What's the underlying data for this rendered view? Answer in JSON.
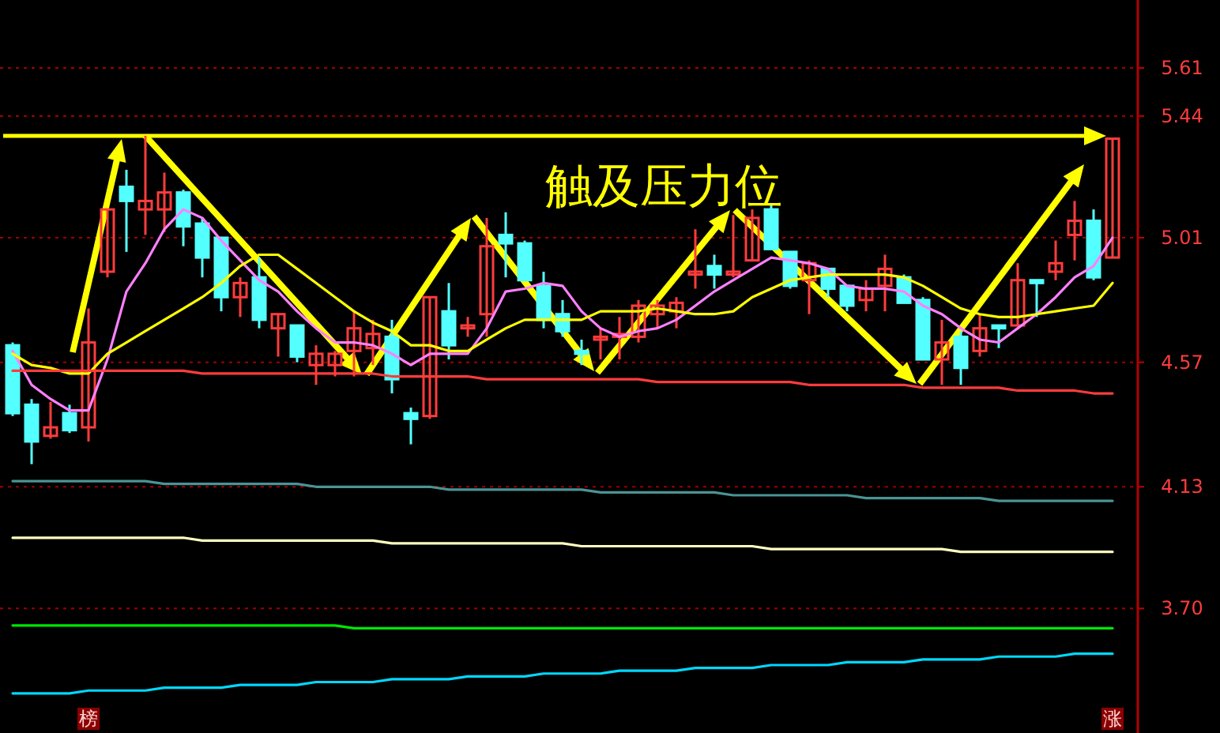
{
  "chart_data": {
    "type": "candlestick",
    "categories": [
      null,
      null,
      null,
      null,
      "榜",
      null,
      null,
      null,
      null,
      null,
      null,
      null,
      null,
      null,
      null,
      null,
      null,
      null,
      null,
      null,
      null,
      null,
      null,
      null,
      null,
      null,
      null,
      null,
      null,
      null,
      null,
      null,
      null,
      null,
      null,
      null,
      null,
      null,
      null,
      null,
      null,
      null,
      null,
      null,
      null,
      null,
      null,
      null,
      null,
      null,
      null,
      null,
      null,
      null,
      null,
      null,
      null,
      null,
      "涨"
    ],
    "ohlc": [
      [
        4.63,
        4.64,
        4.38,
        4.39
      ],
      [
        4.42,
        4.44,
        4.21,
        4.29
      ],
      [
        4.31,
        4.43,
        4.3,
        4.34
      ],
      [
        4.39,
        4.42,
        4.32,
        4.33
      ],
      [
        4.34,
        4.76,
        4.29,
        4.64
      ],
      [
        4.89,
        5.11,
        4.87,
        5.11
      ],
      [
        5.19,
        5.25,
        4.96,
        5.14
      ],
      [
        5.11,
        5.37,
        5.02,
        5.14
      ],
      [
        5.11,
        5.24,
        5.03,
        5.17
      ],
      [
        5.17,
        5.18,
        4.98,
        5.05
      ],
      [
        5.06,
        5.08,
        4.87,
        4.94
      ],
      [
        5.01,
        5.01,
        4.75,
        4.8
      ],
      [
        4.8,
        4.87,
        4.73,
        4.85
      ],
      [
        4.87,
        4.94,
        4.69,
        4.72
      ],
      [
        4.69,
        4.74,
        4.59,
        4.74
      ],
      [
        4.7,
        4.7,
        4.57,
        4.59
      ],
      [
        4.56,
        4.63,
        4.49,
        4.6
      ],
      [
        4.56,
        4.61,
        4.52,
        4.6
      ],
      [
        4.61,
        4.75,
        4.52,
        4.69
      ],
      [
        4.62,
        4.72,
        4.56,
        4.67
      ],
      [
        4.66,
        4.72,
        4.46,
        4.51
      ],
      [
        4.39,
        4.41,
        4.28,
        4.37
      ],
      [
        4.38,
        4.8,
        4.37,
        4.8
      ],
      [
        4.75,
        4.85,
        4.58,
        4.63
      ],
      [
        4.69,
        4.73,
        4.66,
        4.7
      ],
      [
        4.74,
        5.08,
        4.66,
        4.98
      ],
      [
        5.02,
        5.1,
        4.87,
        4.99
      ],
      [
        4.99,
        5.0,
        4.86,
        4.86
      ],
      [
        4.84,
        4.89,
        4.69,
        4.72
      ],
      [
        4.74,
        4.79,
        4.66,
        4.68
      ],
      [
        4.61,
        4.65,
        4.56,
        4.6
      ],
      [
        4.65,
        4.69,
        4.58,
        4.66
      ],
      [
        4.66,
        4.73,
        4.58,
        4.67
      ],
      [
        4.66,
        4.79,
        4.64,
        4.77
      ],
      [
        4.74,
        4.79,
        4.69,
        4.77
      ],
      [
        4.75,
        4.8,
        4.69,
        4.78
      ],
      [
        4.88,
        5.04,
        4.83,
        4.89
      ],
      [
        4.91,
        4.95,
        4.83,
        4.88
      ],
      [
        4.88,
        5.09,
        4.87,
        4.89
      ],
      [
        4.93,
        5.11,
        4.93,
        5.08
      ],
      [
        5.11,
        5.13,
        4.97,
        4.97
      ],
      [
        4.96,
        4.96,
        4.83,
        4.84
      ],
      [
        4.86,
        4.93,
        4.74,
        4.92
      ],
      [
        4.9,
        4.9,
        4.8,
        4.83
      ],
      [
        4.84,
        4.84,
        4.75,
        4.77
      ],
      [
        4.79,
        4.86,
        4.75,
        4.83
      ],
      [
        4.84,
        4.95,
        4.75,
        4.9
      ],
      [
        4.87,
        4.88,
        4.78,
        4.78
      ],
      [
        4.79,
        4.8,
        4.58,
        4.58
      ],
      [
        4.58,
        4.72,
        4.49,
        4.64
      ],
      [
        4.66,
        4.68,
        4.49,
        4.55
      ],
      [
        4.61,
        4.74,
        4.59,
        4.69
      ],
      [
        4.7,
        4.7,
        4.62,
        4.69
      ],
      [
        4.7,
        4.92,
        4.7,
        4.86
      ],
      [
        4.86,
        4.86,
        4.73,
        4.85
      ],
      [
        4.89,
        5.0,
        4.86,
        4.92
      ],
      [
        5.02,
        5.14,
        4.93,
        5.07
      ],
      [
        5.07,
        5.11,
        4.86,
        4.87
      ],
      [
        4.94,
        5.36,
        4.94,
        5.36
      ]
    ],
    "series": [
      {
        "type": "line",
        "color": "#ff80ff",
        "values": [
          4.61,
          4.49,
          4.44,
          4.4,
          4.4,
          4.58,
          4.82,
          4.92,
          5.04,
          5.11,
          5.08,
          5.0,
          4.93,
          4.86,
          4.82,
          4.75,
          4.69,
          4.64,
          4.64,
          4.63,
          4.6,
          4.56,
          4.6,
          4.6,
          4.6,
          4.69,
          4.82,
          4.83,
          4.85,
          4.84,
          4.75,
          4.69,
          4.66,
          4.68,
          4.69,
          4.72,
          4.77,
          4.82,
          4.86,
          4.9,
          4.94,
          4.93,
          4.92,
          4.9,
          4.84,
          4.83,
          4.83,
          4.82,
          4.77,
          4.74,
          4.69,
          4.65,
          4.64,
          4.69,
          4.74,
          4.8,
          4.87,
          4.91,
          5.01
        ]
      },
      {
        "type": "line",
        "color": "#ffff00",
        "values": [
          4.6,
          4.56,
          4.55,
          4.53,
          4.53,
          4.6,
          4.64,
          4.68,
          4.72,
          4.76,
          4.8,
          4.85,
          4.91,
          4.95,
          4.95,
          4.9,
          4.85,
          4.8,
          4.75,
          4.71,
          4.68,
          4.63,
          4.63,
          4.61,
          4.61,
          4.65,
          4.69,
          4.72,
          4.72,
          4.72,
          4.72,
          4.75,
          4.75,
          4.75,
          4.76,
          4.75,
          4.74,
          4.74,
          4.75,
          4.8,
          4.83,
          4.86,
          4.87,
          4.88,
          4.88,
          4.88,
          4.88,
          4.87,
          4.84,
          4.8,
          4.76,
          4.74,
          4.73,
          4.73,
          4.74,
          4.75,
          4.76,
          4.77,
          4.85
        ]
      },
      {
        "type": "line",
        "color": "#ff3c3c",
        "values": [
          4.54,
          4.54,
          4.54,
          4.54,
          4.54,
          4.54,
          4.54,
          4.54,
          4.54,
          4.54,
          4.53,
          4.53,
          4.53,
          4.53,
          4.53,
          4.53,
          4.53,
          4.53,
          4.53,
          4.53,
          4.52,
          4.52,
          4.52,
          4.52,
          4.52,
          4.51,
          4.51,
          4.51,
          4.51,
          4.51,
          4.51,
          4.51,
          4.51,
          4.51,
          4.5,
          4.5,
          4.5,
          4.5,
          4.5,
          4.5,
          4.5,
          4.5,
          4.49,
          4.49,
          4.49,
          4.49,
          4.49,
          4.49,
          4.48,
          4.48,
          4.48,
          4.48,
          4.48,
          4.47,
          4.47,
          4.47,
          4.47,
          4.46,
          4.46
        ]
      },
      {
        "type": "line",
        "color": "#4a9494",
        "values": [
          4.15,
          4.15,
          4.15,
          4.15,
          4.15,
          4.15,
          4.15,
          4.15,
          4.14,
          4.14,
          4.14,
          4.14,
          4.14,
          4.14,
          4.14,
          4.14,
          4.13,
          4.13,
          4.13,
          4.13,
          4.13,
          4.13,
          4.13,
          4.12,
          4.12,
          4.12,
          4.12,
          4.12,
          4.12,
          4.12,
          4.12,
          4.11,
          4.11,
          4.11,
          4.11,
          4.11,
          4.11,
          4.11,
          4.1,
          4.1,
          4.1,
          4.1,
          4.1,
          4.1,
          4.1,
          4.09,
          4.09,
          4.09,
          4.09,
          4.09,
          4.09,
          4.09,
          4.08,
          4.08,
          4.08,
          4.08,
          4.08,
          4.08,
          4.08
        ]
      },
      {
        "type": "line",
        "color": "#ffffc0",
        "values": [
          3.95,
          3.95,
          3.95,
          3.95,
          3.95,
          3.95,
          3.95,
          3.95,
          3.95,
          3.95,
          3.94,
          3.94,
          3.94,
          3.94,
          3.94,
          3.94,
          3.94,
          3.94,
          3.94,
          3.94,
          3.93,
          3.93,
          3.93,
          3.93,
          3.93,
          3.93,
          3.93,
          3.93,
          3.93,
          3.93,
          3.92,
          3.92,
          3.92,
          3.92,
          3.92,
          3.92,
          3.92,
          3.92,
          3.92,
          3.92,
          3.91,
          3.91,
          3.91,
          3.91,
          3.91,
          3.91,
          3.91,
          3.91,
          3.91,
          3.91,
          3.9,
          3.9,
          3.9,
          3.9,
          3.9,
          3.9,
          3.9,
          3.9,
          3.9
        ]
      },
      {
        "type": "line",
        "color": "#00e600",
        "values": [
          3.64,
          3.64,
          3.64,
          3.64,
          3.64,
          3.64,
          3.64,
          3.64,
          3.64,
          3.64,
          3.64,
          3.64,
          3.64,
          3.64,
          3.64,
          3.64,
          3.64,
          3.64,
          3.63,
          3.63,
          3.63,
          3.63,
          3.63,
          3.63,
          3.63,
          3.63,
          3.63,
          3.63,
          3.63,
          3.63,
          3.63,
          3.63,
          3.63,
          3.63,
          3.63,
          3.63,
          3.63,
          3.63,
          3.63,
          3.63,
          3.63,
          3.63,
          3.63,
          3.63,
          3.63,
          3.63,
          3.63,
          3.63,
          3.63,
          3.63,
          3.63,
          3.63,
          3.63,
          3.63,
          3.63,
          3.63,
          3.63,
          3.63,
          3.63
        ]
      },
      {
        "type": "line",
        "color": "#00d8ff",
        "values": [
          3.4,
          3.4,
          3.4,
          3.4,
          3.41,
          3.41,
          3.41,
          3.41,
          3.42,
          3.42,
          3.42,
          3.42,
          3.43,
          3.43,
          3.43,
          3.43,
          3.44,
          3.44,
          3.44,
          3.44,
          3.45,
          3.45,
          3.45,
          3.45,
          3.46,
          3.46,
          3.46,
          3.46,
          3.47,
          3.47,
          3.47,
          3.47,
          3.48,
          3.48,
          3.48,
          3.48,
          3.49,
          3.49,
          3.49,
          3.49,
          3.5,
          3.5,
          3.5,
          3.5,
          3.51,
          3.51,
          3.51,
          3.51,
          3.52,
          3.52,
          3.52,
          3.52,
          3.53,
          3.53,
          3.53,
          3.53,
          3.54,
          3.54,
          3.54
        ]
      }
    ],
    "ylim": [
      3.26,
      5.85
    ],
    "yticks": [
      {
        "value": 3.7,
        "label": "3.70"
      },
      4.13,
      4.57,
      5.01,
      5.44,
      5.61
    ],
    "grid": "y",
    "ref_lines": [
      {
        "axis": "y",
        "value": 5.37,
        "color": "#ffff00"
      }
    ],
    "annotations": [
      "触及压力位"
    ]
  }
}
